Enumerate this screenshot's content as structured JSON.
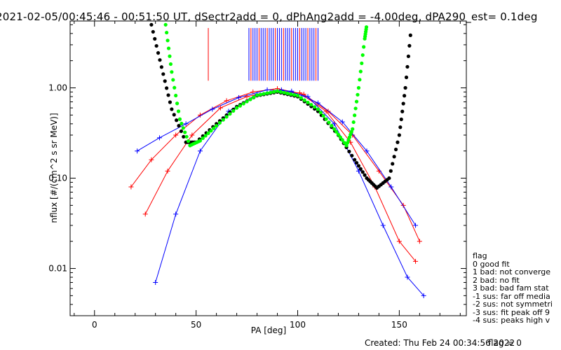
{
  "title": "2021-02-05/00:45:46 - 00:51:50 UT, dSectr2add = 0, dPhAng2add = -4.00deg, dPA290_est=   0.1deg",
  "footer": {
    "created": "Created: Thu Feb 24 00:34:56 2022",
    "flag": "flag = 0"
  },
  "legend": {
    "title": "flag",
    "items": [
      " 0 good fit",
      " 1 bad: not converge",
      " 2 bad: no fit",
      " 3 bad: bad fam stat",
      "-1 sus: far off media",
      "-2 sus: not symmetri",
      "-3 sus: fit peak off 9",
      "-4 sus: peaks high v"
    ]
  },
  "colors": {
    "red_series": "#ff0000",
    "blue_series": "#0000ff",
    "black_fit": "#000000",
    "green_fit": "#00ff00",
    "axes": "#000000"
  },
  "chart_data": {
    "type": "line",
    "xlabel": "PA [deg]",
    "ylabel": "nflux [#/(cm^2 s sr MeV)]",
    "xlim": [
      -12,
      183
    ],
    "ylim": [
      0.003,
      5.5
    ],
    "yscale": "log",
    "xticks": [
      0,
      50,
      100,
      150
    ],
    "yticks": [
      0.01,
      0.1,
      1.0
    ],
    "ytick_labels": [
      "0.01",
      "0.10",
      "1.00"
    ],
    "series": [
      {
        "color": "red",
        "points": [
          [
            18,
            0.08
          ],
          [
            28,
            0.16
          ],
          [
            40,
            0.3
          ],
          [
            52,
            0.5
          ],
          [
            65,
            0.72
          ],
          [
            78,
            0.9
          ],
          [
            90,
            0.98
          ],
          [
            103,
            0.85
          ],
          [
            115,
            0.55
          ],
          [
            127,
            0.3
          ],
          [
            140,
            0.12
          ],
          [
            152,
            0.05
          ],
          [
            160,
            0.02
          ]
        ]
      },
      {
        "color": "blue",
        "points": [
          [
            21,
            0.2
          ],
          [
            32,
            0.28
          ],
          [
            45,
            0.4
          ],
          [
            58,
            0.58
          ],
          [
            71,
            0.78
          ],
          [
            85,
            0.95
          ],
          [
            97,
            0.92
          ],
          [
            110,
            0.68
          ],
          [
            122,
            0.42
          ],
          [
            134,
            0.2
          ],
          [
            146,
            0.08
          ],
          [
            158,
            0.03
          ]
        ]
      },
      {
        "color": "red",
        "points": [
          [
            25,
            0.04
          ],
          [
            36,
            0.12
          ],
          [
            48,
            0.3
          ],
          [
            62,
            0.6
          ],
          [
            75,
            0.8
          ],
          [
            88,
            0.92
          ],
          [
            101,
            0.88
          ],
          [
            114,
            0.55
          ],
          [
            126,
            0.25
          ],
          [
            138,
            0.08
          ],
          [
            150,
            0.02
          ],
          [
            158,
            0.012
          ]
        ]
      },
      {
        "color": "blue",
        "points": [
          [
            30,
            0.007
          ],
          [
            40,
            0.04
          ],
          [
            52,
            0.2
          ],
          [
            66,
            0.55
          ],
          [
            80,
            0.85
          ],
          [
            92,
            0.95
          ],
          [
            105,
            0.8
          ],
          [
            118,
            0.4
          ],
          [
            130,
            0.12
          ],
          [
            142,
            0.03
          ],
          [
            154,
            0.008
          ],
          [
            162,
            0.005
          ]
        ]
      }
    ],
    "fits": [
      {
        "color": "black",
        "points": [
          [
            28,
            5.0
          ],
          [
            33,
            1.7
          ],
          [
            38,
            0.58
          ],
          [
            45,
            0.25
          ],
          [
            50,
            0.25
          ],
          [
            60,
            0.4
          ],
          [
            70,
            0.62
          ],
          [
            80,
            0.82
          ],
          [
            90,
            0.9
          ],
          [
            100,
            0.8
          ],
          [
            110,
            0.55
          ],
          [
            120,
            0.3
          ],
          [
            128,
            0.16
          ],
          [
            134,
            0.1
          ],
          [
            139,
            0.078
          ],
          [
            145,
            0.1
          ],
          [
            150,
            0.3
          ],
          [
            153,
            1.0
          ],
          [
            156,
            5.0
          ]
        ]
      },
      {
        "color": "green",
        "points": [
          [
            35,
            5.0
          ],
          [
            38,
            1.5
          ],
          [
            42,
            0.45
          ],
          [
            47,
            0.23
          ],
          [
            52,
            0.26
          ],
          [
            60,
            0.38
          ],
          [
            70,
            0.6
          ],
          [
            80,
            0.83
          ],
          [
            90,
            0.92
          ],
          [
            100,
            0.82
          ],
          [
            110,
            0.58
          ],
          [
            118,
            0.35
          ],
          [
            124,
            0.23
          ],
          [
            127,
            0.35
          ],
          [
            130,
            1.0
          ],
          [
            133,
            3.5
          ],
          [
            134,
            5.0
          ]
        ]
      }
    ],
    "vertical_marks": [
      56,
      76,
      77,
      78,
      79,
      80,
      81,
      82,
      83,
      84,
      85,
      86,
      87,
      88,
      89,
      90,
      91,
      92,
      93,
      94,
      95,
      96,
      97,
      98,
      99,
      100,
      101,
      102,
      103,
      104,
      105,
      106,
      107,
      108,
      109,
      110
    ]
  }
}
